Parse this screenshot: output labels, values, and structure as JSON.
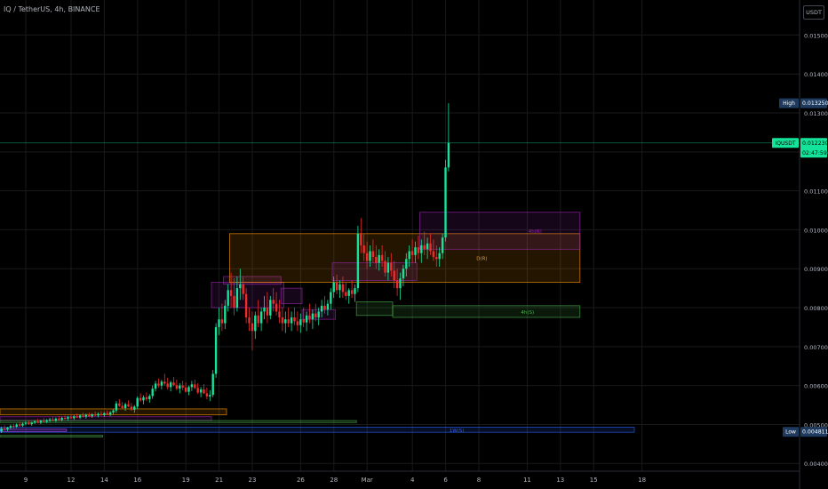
{
  "header": {
    "title": "IQ / TetherUS, 4h, BINANCE"
  },
  "axis": {
    "unit_label": "USDT"
  },
  "colors": {
    "up": "#26a69a",
    "up_bright": "#14e39a",
    "down": "#ef2b2b",
    "grid": "#1a1a1a",
    "text": "#b2b5be",
    "orange": "#ff9800",
    "purple": "#9c27b0",
    "pink": "#e040fb",
    "green": "#4caf50",
    "blue": "#2962ff"
  },
  "chart_data": {
    "type": "candlestick",
    "title": "IQ / TetherUS, 4h, BINANCE",
    "ylim": [
      0.0038,
      0.0159
    ],
    "y_ticks": [
      "0.004000",
      "0.005000",
      "0.006000",
      "0.007000",
      "0.008000",
      "0.009000",
      "0.010000",
      "0.011000",
      "0.012000",
      "0.013000",
      "0.014000",
      "0.015000"
    ],
    "y_tick_values": [
      0.004,
      0.005,
      0.006,
      0.007,
      0.008,
      0.009,
      0.01,
      0.011,
      0.012,
      0.013,
      0.014,
      0.015
    ],
    "x_ticks": [
      "9",
      "12",
      "14",
      "16",
      "19",
      "21",
      "23",
      "26",
      "28",
      "Mar",
      "4",
      "6",
      "8",
      "11",
      "13",
      "15",
      "18"
    ],
    "x_tick_index": [
      0,
      15,
      26,
      37,
      53,
      64,
      75,
      91,
      102,
      113,
      128,
      139,
      150,
      166,
      177,
      188,
      204
    ],
    "price_labels": [
      {
        "tag": "High",
        "value": 0.01325,
        "text": "0.0132500",
        "kind": "high"
      },
      {
        "tag": "IQUSDT",
        "value": 0.01223,
        "text": "0.0122300",
        "sub": "02:47:59",
        "kind": "last"
      },
      {
        "tag": "Low",
        "value": 0.004811,
        "text": "0.0048110",
        "kind": "low"
      }
    ],
    "zones": [
      {
        "label": "",
        "color": "orange",
        "i0": 0,
        "i1": 75,
        "top": 0.0054,
        "bottom": 0.00525
      },
      {
        "label": "",
        "color": "purple",
        "i0": 0,
        "i1": 70,
        "top": 0.0052,
        "bottom": 0.0051
      },
      {
        "label": "",
        "color": "pink",
        "i0": 0,
        "i1": 22,
        "top": 0.00488,
        "bottom": 0.00482
      },
      {
        "label": "",
        "color": "green",
        "i0": 0,
        "i1": 118,
        "top": 0.0051,
        "bottom": 0.00505
      },
      {
        "label": "",
        "color": "green",
        "i0": 0,
        "i1": 34,
        "top": 0.00472,
        "bottom": 0.00468
      },
      {
        "label": "1W(S)",
        "color": "blue",
        "i0": 0,
        "i1": 210,
        "top": 0.00493,
        "bottom": 0.0048
      },
      {
        "label": "",
        "color": "purple",
        "i0": 70,
        "i1": 94,
        "top": 0.00865,
        "bottom": 0.008
      },
      {
        "label": "",
        "color": "purple",
        "i0": 74,
        "i1": 93,
        "top": 0.0088,
        "bottom": 0.0086
      },
      {
        "label": "",
        "color": "purple",
        "i0": 93,
        "i1": 100,
        "top": 0.0085,
        "bottom": 0.0081
      },
      {
        "label": "",
        "color": "purple",
        "i0": 100,
        "i1": 111,
        "top": 0.00795,
        "bottom": 0.0077
      },
      {
        "label": "D(R)",
        "color": "orange",
        "i0": 76,
        "i1": 192,
        "top": 0.0099,
        "bottom": 0.00865
      },
      {
        "label": "",
        "color": "purple",
        "i0": 110,
        "i1": 138,
        "top": 0.00915,
        "bottom": 0.0087
      },
      {
        "label": "4h(R)",
        "color": "purple",
        "i0": 139,
        "i1": 192,
        "top": 0.01045,
        "bottom": 0.0095
      },
      {
        "label": "",
        "color": "green",
        "i0": 118,
        "i1": 130,
        "top": 0.00815,
        "bottom": 0.0078
      },
      {
        "label": "4h(S)",
        "color": "green",
        "i0": 130,
        "i1": 192,
        "top": 0.00805,
        "bottom": 0.00775
      }
    ],
    "candles": [
      [
        0.00482,
        0.00495,
        0.00478,
        0.0049
      ],
      [
        0.0049,
        0.00498,
        0.00485,
        0.00488
      ],
      [
        0.00488,
        0.00494,
        0.00483,
        0.00492
      ],
      [
        0.00492,
        0.005,
        0.00488,
        0.00496
      ],
      [
        0.00496,
        0.00502,
        0.0049,
        0.00494
      ],
      [
        0.00494,
        0.00503,
        0.00491,
        0.005
      ],
      [
        0.005,
        0.00506,
        0.00494,
        0.00497
      ],
      [
        0.00497,
        0.00505,
        0.00493,
        0.00502
      ],
      [
        0.00502,
        0.00508,
        0.00498,
        0.00504
      ],
      [
        0.00504,
        0.0051,
        0.00499,
        0.00501
      ],
      [
        0.00501,
        0.00507,
        0.00497,
        0.00505
      ],
      [
        0.00505,
        0.00511,
        0.00501,
        0.00508
      ],
      [
        0.00508,
        0.00514,
        0.00503,
        0.00505
      ],
      [
        0.00505,
        0.00512,
        0.00501,
        0.0051
      ],
      [
        0.0051,
        0.00516,
        0.00505,
        0.00507
      ],
      [
        0.00507,
        0.00514,
        0.00503,
        0.00511
      ],
      [
        0.00511,
        0.00517,
        0.00506,
        0.00513
      ],
      [
        0.00513,
        0.00519,
        0.00508,
        0.0051
      ],
      [
        0.0051,
        0.00518,
        0.00506,
        0.00515
      ],
      [
        0.00515,
        0.00521,
        0.0051,
        0.00512
      ],
      [
        0.00512,
        0.0052,
        0.00508,
        0.00517
      ],
      [
        0.00517,
        0.00523,
        0.00512,
        0.00515
      ],
      [
        0.00515,
        0.00522,
        0.0051,
        0.00519
      ],
      [
        0.00519,
        0.00526,
        0.00514,
        0.00516
      ],
      [
        0.00516,
        0.00524,
        0.00512,
        0.00521
      ],
      [
        0.00521,
        0.00528,
        0.00516,
        0.00518
      ],
      [
        0.00518,
        0.00526,
        0.00514,
        0.00523
      ],
      [
        0.00523,
        0.0053,
        0.00518,
        0.0052
      ],
      [
        0.0052,
        0.00528,
        0.00515,
        0.00524
      ],
      [
        0.00524,
        0.00531,
        0.00519,
        0.00521
      ],
      [
        0.00521,
        0.00529,
        0.00517,
        0.00526
      ],
      [
        0.00526,
        0.00533,
        0.00521,
        0.00523
      ],
      [
        0.00523,
        0.00531,
        0.00518,
        0.00527
      ],
      [
        0.00527,
        0.00534,
        0.00522,
        0.00524
      ],
      [
        0.00524,
        0.00532,
        0.0052,
        0.00529
      ],
      [
        0.00529,
        0.00536,
        0.00524,
        0.00526
      ],
      [
        0.00526,
        0.00534,
        0.00521,
        0.00531
      ],
      [
        0.00531,
        0.0054,
        0.00525,
        0.00536
      ],
      [
        0.00536,
        0.0056,
        0.0053,
        0.00554
      ],
      [
        0.00554,
        0.00565,
        0.00545,
        0.00548
      ],
      [
        0.00548,
        0.00558,
        0.0054,
        0.00542
      ],
      [
        0.00542,
        0.00556,
        0.00535,
        0.00552
      ],
      [
        0.00552,
        0.00562,
        0.00544,
        0.00546
      ],
      [
        0.00546,
        0.00555,
        0.00535,
        0.00538
      ],
      [
        0.00538,
        0.0055,
        0.0053,
        0.00546
      ],
      [
        0.00546,
        0.00572,
        0.0054,
        0.00568
      ],
      [
        0.00568,
        0.0058,
        0.00558,
        0.00562
      ],
      [
        0.00562,
        0.00575,
        0.00552,
        0.0057
      ],
      [
        0.0057,
        0.00582,
        0.0056,
        0.00565
      ],
      [
        0.00565,
        0.00578,
        0.00556,
        0.00573
      ],
      [
        0.00573,
        0.006,
        0.00566,
        0.00592
      ],
      [
        0.00592,
        0.00612,
        0.00585,
        0.00605
      ],
      [
        0.00605,
        0.00618,
        0.00595,
        0.006
      ],
      [
        0.006,
        0.00615,
        0.0059,
        0.0061
      ],
      [
        0.0061,
        0.0063,
        0.006,
        0.00605
      ],
      [
        0.00605,
        0.0062,
        0.0059,
        0.00596
      ],
      [
        0.00596,
        0.00612,
        0.00585,
        0.00608
      ],
      [
        0.00608,
        0.00622,
        0.00598,
        0.00601
      ],
      [
        0.00601,
        0.00615,
        0.00588,
        0.00592
      ],
      [
        0.00592,
        0.00606,
        0.0058,
        0.006
      ],
      [
        0.006,
        0.00612,
        0.00588,
        0.00595
      ],
      [
        0.00595,
        0.00608,
        0.00582,
        0.00584
      ],
      [
        0.00584,
        0.006,
        0.00575,
        0.00596
      ],
      [
        0.00596,
        0.00612,
        0.00586,
        0.00603
      ],
      [
        0.00603,
        0.00615,
        0.0059,
        0.00594
      ],
      [
        0.00594,
        0.00606,
        0.00578,
        0.00582
      ],
      [
        0.00582,
        0.00596,
        0.0057,
        0.0059
      ],
      [
        0.0059,
        0.00604,
        0.00578,
        0.0058
      ],
      [
        0.0058,
        0.00595,
        0.00565,
        0.00572
      ],
      [
        0.00572,
        0.00588,
        0.0056,
        0.00576
      ],
      [
        0.00576,
        0.0064,
        0.0057,
        0.0063
      ],
      [
        0.0063,
        0.0076,
        0.0062,
        0.0075
      ],
      [
        0.0075,
        0.008,
        0.0073,
        0.0077
      ],
      [
        0.0077,
        0.0081,
        0.0074,
        0.0076
      ],
      [
        0.0076,
        0.0082,
        0.00745,
        0.00805
      ],
      [
        0.00805,
        0.0086,
        0.0079,
        0.00845
      ],
      [
        0.00845,
        0.0089,
        0.008,
        0.0083
      ],
      [
        0.0083,
        0.00875,
        0.0078,
        0.008
      ],
      [
        0.008,
        0.0088,
        0.0079,
        0.0085
      ],
      [
        0.0085,
        0.009,
        0.0082,
        0.0086
      ],
      [
        0.0086,
        0.0088,
        0.0082,
        0.00835
      ],
      [
        0.00835,
        0.0085,
        0.0076,
        0.00775
      ],
      [
        0.00775,
        0.008,
        0.0074,
        0.0076
      ],
      [
        0.0076,
        0.0079,
        0.0069,
        0.0074
      ],
      [
        0.0074,
        0.0079,
        0.0072,
        0.0078
      ],
      [
        0.0078,
        0.0082,
        0.0075,
        0.0076
      ],
      [
        0.0076,
        0.008,
        0.0074,
        0.0079
      ],
      [
        0.0079,
        0.0083,
        0.0077,
        0.008
      ],
      [
        0.008,
        0.0084,
        0.0076,
        0.0078
      ],
      [
        0.0078,
        0.0083,
        0.0077,
        0.0082
      ],
      [
        0.0082,
        0.0085,
        0.0079,
        0.0081
      ],
      [
        0.0081,
        0.0084,
        0.0078,
        0.0079
      ],
      [
        0.0079,
        0.0082,
        0.0076,
        0.00775
      ],
      [
        0.00775,
        0.008,
        0.0074,
        0.0076
      ],
      [
        0.0076,
        0.0079,
        0.00735,
        0.0077
      ],
      [
        0.0077,
        0.008,
        0.0075,
        0.0076
      ],
      [
        0.0076,
        0.0079,
        0.0074,
        0.00775
      ],
      [
        0.00775,
        0.008,
        0.00755,
        0.00765
      ],
      [
        0.00765,
        0.0079,
        0.0074,
        0.00755
      ],
      [
        0.00755,
        0.00785,
        0.00735,
        0.0077
      ],
      [
        0.0077,
        0.008,
        0.0075,
        0.00762
      ],
      [
        0.00762,
        0.0079,
        0.0074,
        0.0078
      ],
      [
        0.0078,
        0.0081,
        0.0076,
        0.0077
      ],
      [
        0.0077,
        0.00795,
        0.00745,
        0.00785
      ],
      [
        0.00785,
        0.0081,
        0.00765,
        0.00775
      ],
      [
        0.00775,
        0.008,
        0.00755,
        0.0079
      ],
      [
        0.0079,
        0.0082,
        0.00775,
        0.00805
      ],
      [
        0.00805,
        0.0083,
        0.00785,
        0.00795
      ],
      [
        0.00795,
        0.0082,
        0.0078,
        0.0081
      ],
      [
        0.0081,
        0.0085,
        0.00795,
        0.0084
      ],
      [
        0.0084,
        0.0088,
        0.00825,
        0.00865
      ],
      [
        0.00865,
        0.00885,
        0.00835,
        0.00845
      ],
      [
        0.00845,
        0.0087,
        0.00825,
        0.0086
      ],
      [
        0.0086,
        0.0088,
        0.00825,
        0.0084
      ],
      [
        0.0084,
        0.00865,
        0.0082,
        0.0083
      ],
      [
        0.0083,
        0.0085,
        0.0081,
        0.00845
      ],
      [
        0.00845,
        0.0087,
        0.00825,
        0.00835
      ],
      [
        0.00835,
        0.0086,
        0.00815,
        0.0085
      ],
      [
        0.0085,
        0.0101,
        0.0084,
        0.0099
      ],
      [
        0.0099,
        0.0103,
        0.0094,
        0.0096
      ],
      [
        0.0096,
        0.0099,
        0.0092,
        0.0094
      ],
      [
        0.0094,
        0.0097,
        0.009,
        0.0092
      ],
      [
        0.0092,
        0.0096,
        0.00905,
        0.00945
      ],
      [
        0.00945,
        0.00975,
        0.00915,
        0.0093
      ],
      [
        0.0093,
        0.0096,
        0.009,
        0.00915
      ],
      [
        0.00915,
        0.0095,
        0.00895,
        0.00935
      ],
      [
        0.00935,
        0.0096,
        0.00905,
        0.0092
      ],
      [
        0.0092,
        0.00945,
        0.0088,
        0.0089
      ],
      [
        0.0089,
        0.0093,
        0.0087,
        0.00915
      ],
      [
        0.00915,
        0.0094,
        0.0088,
        0.00895
      ],
      [
        0.00895,
        0.0092,
        0.0085,
        0.0087
      ],
      [
        0.0087,
        0.009,
        0.0083,
        0.0085
      ],
      [
        0.0085,
        0.0089,
        0.0082,
        0.00875
      ],
      [
        0.00875,
        0.0091,
        0.00855,
        0.009
      ],
      [
        0.009,
        0.0094,
        0.0088,
        0.00925
      ],
      [
        0.00925,
        0.0096,
        0.00905,
        0.00945
      ],
      [
        0.00945,
        0.00975,
        0.00915,
        0.00935
      ],
      [
        0.00935,
        0.0097,
        0.00915,
        0.00955
      ],
      [
        0.00955,
        0.00985,
        0.00925,
        0.0094
      ],
      [
        0.0094,
        0.00975,
        0.00915,
        0.0096
      ],
      [
        0.0096,
        0.00995,
        0.00935,
        0.0095
      ],
      [
        0.0095,
        0.0098,
        0.00925,
        0.00965
      ],
      [
        0.00965,
        0.0099,
        0.00935,
        0.00945
      ],
      [
        0.00945,
        0.00975,
        0.0092,
        0.0093
      ],
      [
        0.0093,
        0.0096,
        0.00905,
        0.00925
      ],
      [
        0.00925,
        0.00955,
        0.00905,
        0.0094
      ],
      [
        0.0094,
        0.0099,
        0.00925,
        0.0098
      ],
      [
        0.0098,
        0.0118,
        0.0097,
        0.0116
      ],
      [
        0.0116,
        0.01325,
        0.0115,
        0.01223
      ]
    ]
  }
}
